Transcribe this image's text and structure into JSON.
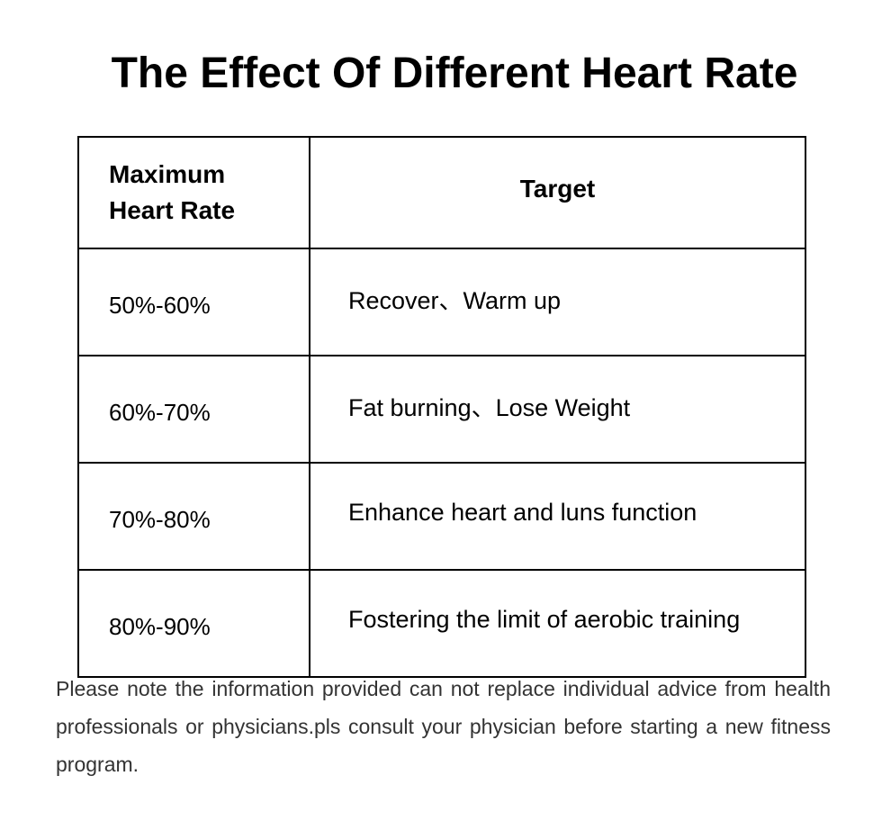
{
  "title": "The Effect Of Different Heart Rate",
  "table": {
    "header": [
      "Maximum Heart Rate",
      "Target"
    ],
    "rows": [
      [
        "50%-60%",
        "Recover、Warm up"
      ],
      [
        "60%-70%",
        "Fat burning、Lose Weight"
      ],
      [
        "70%-80%",
        "Enhance heart and luns function"
      ],
      [
        "80%-90%",
        "Fostering the limit of aerobic training"
      ]
    ]
  },
  "note": "Please note the information provided can not replace individual advice from health professionals or physicians.pls consult your physician before starting a new fitness program."
}
